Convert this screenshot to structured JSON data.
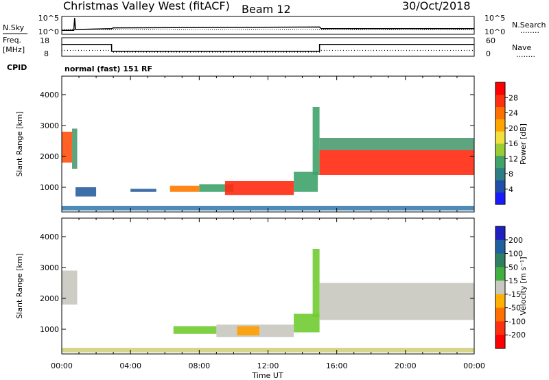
{
  "header": {
    "station": "Christmas Valley West (fitACF)",
    "beam": "Beam 12",
    "date": "30/Oct/2018"
  },
  "labels": {
    "nsky": "N.Sky",
    "nsearch": "N.Search",
    "freq": "Freq.",
    "freq_unit": "[MHz]",
    "nave": "Nave",
    "cpid": "CPID",
    "mode": "normal (fast) 151 RF",
    "dotted": "........"
  },
  "chart_data": [
    {
      "type": "line",
      "name": "noise-panel",
      "left_axis": {
        "ticks": [
          "10^5",
          "10^0"
        ]
      },
      "right_axis": {
        "ticks": [
          "10^5",
          "10^0"
        ]
      },
      "series": [
        {
          "name": "N.Sky",
          "style": "solid",
          "x": [
            0.0,
            0.7,
            0.75,
            0.8,
            2.9,
            3.0,
            15.0,
            15.1,
            24.0
          ],
          "y": [
            0.2,
            0.2,
            0.95,
            0.25,
            0.3,
            0.35,
            0.4,
            0.3,
            0.3
          ]
        },
        {
          "name": "N.Search",
          "style": "dotted",
          "x": [
            0.0,
            24.0
          ],
          "y": [
            0.25,
            0.25
          ]
        }
      ]
    },
    {
      "type": "line",
      "name": "freq-panel",
      "left_axis": {
        "ticks": [
          "18",
          "8"
        ]
      },
      "right_axis": {
        "ticks": [
          "60",
          "0"
        ]
      },
      "series": [
        {
          "name": "Freq",
          "style": "solid",
          "x": [
            0.0,
            2.9,
            2.9,
            15.0,
            15.0,
            24.0
          ],
          "y": [
            14.5,
            14.5,
            10.5,
            10.5,
            14.5,
            14.5
          ]
        },
        {
          "name": "Nave",
          "style": "dotted",
          "x": [
            0.0,
            2.9,
            3.0,
            15.0,
            15.1,
            24.0
          ],
          "y": [
            18,
            18,
            12,
            12,
            18,
            18
          ]
        }
      ]
    },
    {
      "type": "heatmap",
      "name": "power-panel",
      "xlabel": "",
      "ylabel": "Slant Range [km]",
      "xlim": [
        0,
        24
      ],
      "ylim": [
        200,
        4600
      ],
      "yticks": [
        1000,
        2000,
        3000,
        4000
      ],
      "colorbar": {
        "label": "Power [dB]",
        "ticks": [
          "4",
          "8",
          "12",
          "16",
          "20",
          "24",
          "28"
        ],
        "colors": [
          "#1a1aff",
          "#1f4fa8",
          "#2e7f85",
          "#3fa36a",
          "#9acd32",
          "#f0e040",
          "#ffa500",
          "#ff7000",
          "#ff3010",
          "#ff0000"
        ]
      },
      "regions": [
        {
          "t0": 0.0,
          "t1": 0.6,
          "r0": 1800,
          "r1": 2800,
          "color": "#ff5010"
        },
        {
          "t0": 0.6,
          "t1": 0.9,
          "r0": 1600,
          "r1": 2900,
          "color": "#4c9a70"
        },
        {
          "t0": 0.8,
          "t1": 2.0,
          "r0": 700,
          "r1": 1000,
          "color": "#2a5fa0"
        },
        {
          "t0": 4.0,
          "t1": 5.5,
          "r0": 850,
          "r1": 950,
          "color": "#2a5fa0"
        },
        {
          "t0": 6.3,
          "t1": 8.0,
          "r0": 850,
          "r1": 1050,
          "color": "#ff7a00"
        },
        {
          "t0": 8.0,
          "t1": 10.0,
          "r0": 850,
          "r1": 1100,
          "color": "#3fa36a"
        },
        {
          "t0": 9.5,
          "t1": 13.5,
          "r0": 750,
          "r1": 1200,
          "color": "#ff2a10"
        },
        {
          "t0": 13.5,
          "t1": 14.9,
          "r0": 850,
          "r1": 1500,
          "color": "#3fa36a"
        },
        {
          "t0": 14.6,
          "t1": 15.0,
          "r0": 1400,
          "r1": 3600,
          "color": "#3fa36a"
        },
        {
          "t0": 15.0,
          "t1": 24.0,
          "r0": 1400,
          "r1": 2200,
          "color": "#ff2a10"
        },
        {
          "t0": 15.0,
          "t1": 24.0,
          "r0": 2200,
          "r1": 2600,
          "color": "#4c9a70"
        },
        {
          "t0": 0.0,
          "t1": 24.0,
          "r0": 250,
          "r1": 400,
          "color": "#3a7fb0"
        }
      ]
    },
    {
      "type": "heatmap",
      "name": "velocity-panel",
      "xlabel": "Time UT",
      "ylabel": "Slant Range [km]",
      "xlim": [
        0,
        24
      ],
      "ylim": [
        200,
        4600
      ],
      "xticks": [
        "00:00",
        "04:00",
        "08:00",
        "12:00",
        "16:00",
        "20:00",
        "00:00"
      ],
      "yticks": [
        1000,
        2000,
        3000,
        4000
      ],
      "colorbar": {
        "label": "Velocity [m s⁻¹]",
        "ticks": [
          "200",
          "100",
          "50",
          "15",
          "-15",
          "-50",
          "-100",
          "-200"
        ],
        "colors": [
          "#2020c0",
          "#2060a0",
          "#2e8060",
          "#40b040",
          "#c8c8c0",
          "#ffb000",
          "#ff7000",
          "#ff3010",
          "#ff0000"
        ]
      },
      "regions": [
        {
          "t0": 0.0,
          "t1": 0.9,
          "r0": 1800,
          "r1": 2900,
          "color": "#c8c8c0"
        },
        {
          "t0": 6.5,
          "t1": 9.0,
          "r0": 850,
          "r1": 1100,
          "color": "#70cc30"
        },
        {
          "t0": 9.0,
          "t1": 13.5,
          "r0": 750,
          "r1": 1150,
          "color": "#c8c8c0"
        },
        {
          "t0": 10.2,
          "t1": 11.5,
          "r0": 800,
          "r1": 1100,
          "color": "#ffa000"
        },
        {
          "t0": 13.5,
          "t1": 15.0,
          "r0": 900,
          "r1": 1500,
          "color": "#70cc30"
        },
        {
          "t0": 14.6,
          "t1": 15.0,
          "r0": 1400,
          "r1": 3600,
          "color": "#70cc30"
        },
        {
          "t0": 15.0,
          "t1": 24.0,
          "r0": 1300,
          "r1": 2500,
          "color": "#c8c8c0"
        },
        {
          "t0": 0.0,
          "t1": 24.0,
          "r0": 250,
          "r1": 400,
          "color": "#d0d080"
        }
      ]
    }
  ]
}
